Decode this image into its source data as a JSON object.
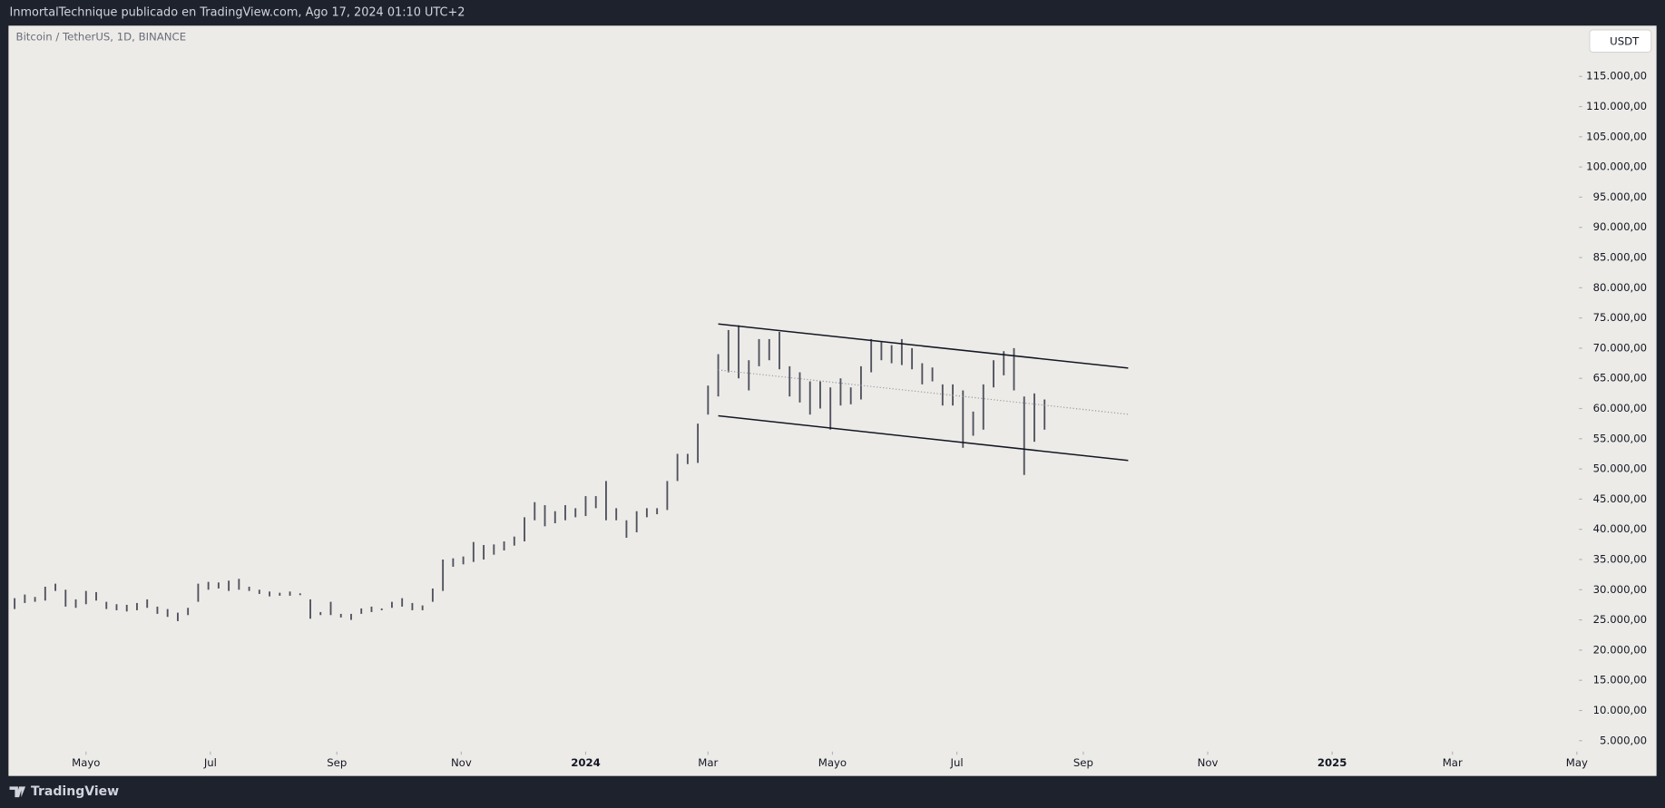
{
  "header": {
    "title": "InmortalTechnique publicado en TradingView.com, Ago 17, 2024 01:10 UTC+2"
  },
  "footer": {
    "brand": "TradingView"
  },
  "chart_data": {
    "type": "ohlc",
    "title": "Bitcoin / TetherUS, 1D, BINANCE",
    "currency": "USDT",
    "color": "#50535e",
    "xlim": [
      -38,
      731
    ],
    "ylim": [
      3200,
      123400
    ],
    "xticks": [
      {
        "value": 0,
        "label": "Mayo"
      },
      {
        "value": 61,
        "label": "Jul"
      },
      {
        "value": 123,
        "label": "Sep"
      },
      {
        "value": 184,
        "label": "Nov"
      },
      {
        "value": 245,
        "label": "2024"
      },
      {
        "value": 305,
        "label": "Mar"
      },
      {
        "value": 366,
        "label": "Mayo"
      },
      {
        "value": 427,
        "label": "Jul"
      },
      {
        "value": 489,
        "label": "Sep"
      },
      {
        "value": 550,
        "label": "Nov"
      },
      {
        "value": 611,
        "label": "2025"
      },
      {
        "value": 670,
        "label": "Mar"
      },
      {
        "value": 731,
        "label": "May"
      }
    ],
    "yticks": [
      {
        "value": 5000,
        "label": "5.000,00"
      },
      {
        "value": 10000,
        "label": "10.000,00"
      },
      {
        "value": 15000,
        "label": "15.000,00"
      },
      {
        "value": 20000,
        "label": "20.000,00"
      },
      {
        "value": 25000,
        "label": "25.000,00"
      },
      {
        "value": 30000,
        "label": "30.000,00"
      },
      {
        "value": 35000,
        "label": "35.000,00"
      },
      {
        "value": 40000,
        "label": "40.000,00"
      },
      {
        "value": 45000,
        "label": "45.000,00"
      },
      {
        "value": 50000,
        "label": "50.000,00"
      },
      {
        "value": 55000,
        "label": "55.000,00"
      },
      {
        "value": 60000,
        "label": "60.000,00"
      },
      {
        "value": 65000,
        "label": "65.000,00"
      },
      {
        "value": 70000,
        "label": "70.000,00"
      },
      {
        "value": 75000,
        "label": "75.000,00"
      },
      {
        "value": 80000,
        "label": "80.000,00"
      },
      {
        "value": 85000,
        "label": "85.000,00"
      },
      {
        "value": 90000,
        "label": "90.000,00"
      },
      {
        "value": 95000,
        "label": "95.000,00"
      },
      {
        "value": 100000,
        "label": "100.000,00"
      },
      {
        "value": 105000,
        "label": "105.000,00"
      },
      {
        "value": 110000,
        "label": "110.000,00"
      },
      {
        "value": 115000,
        "label": "115.000,00"
      }
    ],
    "series": [
      {
        "x": [
          -35,
          -30,
          -25,
          -20,
          -15,
          -10,
          -5,
          0,
          5,
          10,
          15,
          20,
          25,
          30,
          35,
          40,
          45,
          50,
          55,
          60,
          65,
          70,
          75,
          80,
          85,
          90,
          95,
          100,
          105,
          110,
          115,
          120,
          125,
          130,
          135,
          140,
          145,
          150,
          155,
          160,
          165,
          170,
          175,
          180,
          185,
          190,
          195,
          200,
          205,
          210,
          215,
          220,
          225,
          230,
          235,
          240,
          245,
          250,
          255,
          260,
          265,
          270,
          275,
          280,
          285,
          290,
          295,
          300,
          305,
          310,
          315,
          320,
          325,
          330,
          335,
          340,
          345,
          350,
          355,
          360,
          365,
          370,
          375,
          380,
          385,
          390,
          395,
          400,
          405,
          410,
          415,
          420,
          425,
          430,
          435,
          440,
          445,
          450,
          455,
          460,
          465,
          470
        ],
        "high": [
          28600,
          29200,
          28800,
          30500,
          31000,
          30000,
          28400,
          29800,
          29600,
          28000,
          27600,
          27500,
          27800,
          28400,
          27200,
          26800,
          26200,
          27000,
          31000,
          31300,
          31200,
          31500,
          31800,
          30500,
          30000,
          29700,
          29500,
          29700,
          29400,
          28400,
          26300,
          28000,
          26000,
          26000,
          26900,
          27200,
          26900,
          28000,
          28600,
          27800,
          27400,
          30200,
          35000,
          35200,
          35500,
          37900,
          37400,
          37500,
          38000,
          38800,
          42000,
          44500,
          44000,
          43000,
          44000,
          43500,
          45500,
          45500,
          48000,
          43500,
          41500,
          43000,
          43500,
          43500,
          48000,
          52500,
          52500,
          57500,
          63800,
          69000,
          73000,
          73800,
          68000,
          71500,
          71500,
          72700,
          67000,
          66000,
          64500,
          64500,
          63500,
          65000,
          63500,
          67000,
          71500,
          71000,
          70500,
          71500,
          70000,
          67500,
          66800,
          64000,
          64000,
          63000,
          59500,
          64000,
          68000,
          69500,
          70000,
          62000,
          62500,
          61500
        ],
        "low": [
          26800,
          27800,
          28000,
          28200,
          29800,
          27200,
          27000,
          27600,
          28200,
          26800,
          26600,
          26400,
          26600,
          27000,
          26000,
          25500,
          24800,
          25800,
          28000,
          30000,
          30200,
          29800,
          30000,
          29800,
          29300,
          28900,
          29000,
          29000,
          29100,
          25200,
          25800,
          25800,
          25400,
          25000,
          26000,
          26300,
          26600,
          27000,
          27200,
          26600,
          26600,
          28000,
          29800,
          33800,
          34200,
          34600,
          35000,
          35800,
          36500,
          37300,
          38000,
          41500,
          40500,
          41000,
          41500,
          42000,
          42200,
          43500,
          41500,
          41500,
          38600,
          39500,
          42000,
          42500,
          43200,
          48000,
          50800,
          51000,
          59000,
          62000,
          66000,
          65000,
          63000,
          67000,
          68000,
          66500,
          62000,
          61000,
          59000,
          60000,
          56500,
          60500,
          60700,
          61500,
          66000,
          68000,
          67500,
          67200,
          66500,
          64000,
          64500,
          60500,
          60500,
          53500,
          55500,
          56500,
          63500,
          65500,
          63000,
          49000,
          54500,
          56500
        ]
      }
    ],
    "trendlines": [
      {
        "x": [
          310,
          511
        ],
        "y": [
          74000,
          66700
        ],
        "color": "#131722",
        "style": "solid"
      },
      {
        "x": [
          310,
          511
        ],
        "y": [
          58800,
          51400
        ],
        "color": "#131722",
        "style": "solid"
      },
      {
        "x": [
          310,
          511
        ],
        "y": [
          66400,
          59050
        ],
        "color": "#9598a1",
        "style": "dotted"
      }
    ]
  }
}
